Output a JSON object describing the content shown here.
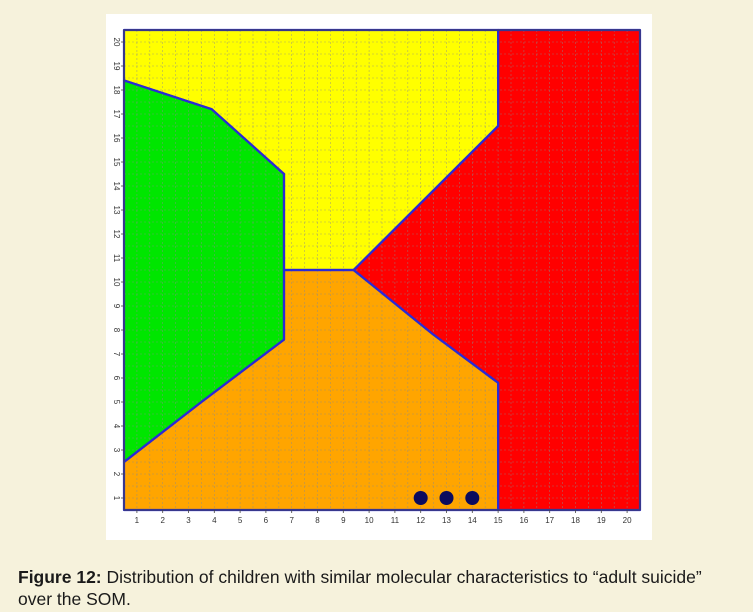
{
  "chart_data": {
    "type": "heatmap",
    "title": "",
    "xlabel": "",
    "ylabel": "",
    "xlim": [
      0.5,
      20.5
    ],
    "ylim": [
      0.5,
      20.5
    ],
    "x_ticks": [
      "1",
      "2",
      "3",
      "4",
      "5",
      "6",
      "7",
      "8",
      "9",
      "10",
      "11",
      "12",
      "13",
      "14",
      "15",
      "16",
      "17",
      "18",
      "19",
      "20"
    ],
    "y_ticks": [
      "1",
      "2",
      "3",
      "4",
      "5",
      "6",
      "7",
      "8",
      "9",
      "10",
      "11",
      "12",
      "13",
      "14",
      "15",
      "16",
      "17",
      "18",
      "19",
      "20"
    ],
    "grid": true,
    "regions": [
      {
        "id": "yellow",
        "color": "#ffff00",
        "vertices": [
          [
            0.5,
            20.5
          ],
          [
            15,
            20.5
          ],
          [
            15,
            16.5
          ],
          [
            9.4,
            10.5
          ],
          [
            6.7,
            10.5
          ],
          [
            6.7,
            14.5
          ],
          [
            3.9,
            17.2
          ],
          [
            0.5,
            18.4
          ]
        ]
      },
      {
        "id": "green",
        "color": "#00e600",
        "vertices": [
          [
            0.5,
            18.4
          ],
          [
            3.9,
            17.2
          ],
          [
            6.7,
            14.5
          ],
          [
            6.7,
            7.6
          ],
          [
            3.5,
            5.0
          ],
          [
            0.5,
            2.5
          ]
        ]
      },
      {
        "id": "orange",
        "color": "#ffa500",
        "vertices": [
          [
            0.5,
            2.5
          ],
          [
            3.5,
            5.0
          ],
          [
            6.7,
            7.6
          ],
          [
            6.7,
            10.5
          ],
          [
            9.4,
            10.5
          ],
          [
            12.5,
            7.8
          ],
          [
            15,
            5.8
          ],
          [
            15,
            0.5
          ],
          [
            0.5,
            0.5
          ]
        ]
      },
      {
        "id": "red",
        "color": "#ff0000",
        "vertices": [
          [
            15,
            20.5
          ],
          [
            20.5,
            20.5
          ],
          [
            20.5,
            0.5
          ],
          [
            15,
            0.5
          ],
          [
            15,
            5.8
          ],
          [
            12.5,
            7.8
          ],
          [
            9.4,
            10.5
          ],
          [
            15,
            16.5
          ]
        ]
      }
    ],
    "boundary_color": "#2a2ad6",
    "points": [
      {
        "x": 12,
        "y": 1
      },
      {
        "x": 13,
        "y": 1
      },
      {
        "x": 14,
        "y": 1
      }
    ],
    "point_color": "#0b0b5e"
  },
  "caption": {
    "label": "Figure 12:",
    "text": " Distribution of children with similar molecular characteristics to “adult suicide” over the SOM."
  }
}
